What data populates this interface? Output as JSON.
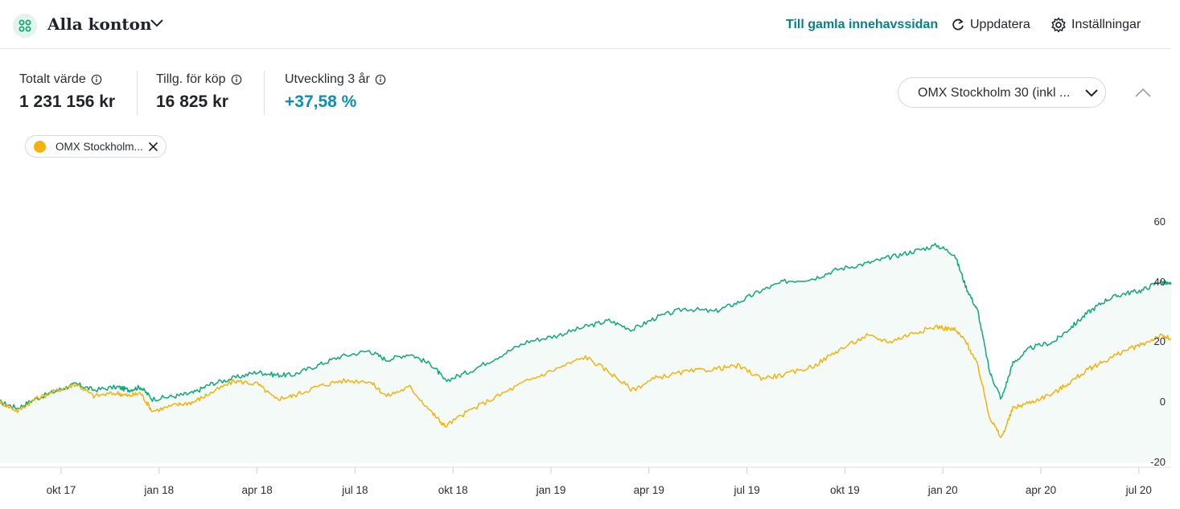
{
  "header": {
    "account_title": "Alla konton",
    "old_holdings_link": "Till gamla innehavssidan",
    "refresh_label": "Uppdatera",
    "settings_label": "Inställningar"
  },
  "stats": [
    {
      "label": "Totalt värde",
      "value": "1 231 156 kr"
    },
    {
      "label": "Tillg. för köp",
      "value": "16 825 kr"
    },
    {
      "label": "Utveckling 3 år",
      "value": "+37,58 %"
    }
  ],
  "index_select": {
    "value": "OMX Stockholm 30 (inkl ..."
  },
  "legend_chip": {
    "label": "OMX Stockholm...",
    "color": "#f2b30d"
  },
  "colors": {
    "portfolio": "#12a77a",
    "index": "#f2b30d",
    "fill": "#f3faf7",
    "positive": "#0b8fb3",
    "link": "#0b7f86"
  },
  "chart_data": {
    "type": "line",
    "x_tick_labels": [
      "okt 17",
      "jan 18",
      "apr 18",
      "jul 18",
      "okt 18",
      "jan 19",
      "apr 19",
      "jul 19",
      "okt 19",
      "jan 20",
      "apr 20",
      "jul 20"
    ],
    "y_tick_labels": [
      "60",
      "40",
      "20",
      "0",
      "-20"
    ],
    "ylim": [
      -20,
      60
    ],
    "series": [
      {
        "color": "#12a77a",
        "points": [
          [
            0,
            0
          ],
          [
            0.3,
            -2
          ],
          [
            0.6,
            1
          ],
          [
            1,
            4
          ],
          [
            1.3,
            6
          ],
          [
            1.6,
            4
          ],
          [
            2,
            5
          ],
          [
            2.2,
            4
          ],
          [
            2.4,
            5
          ],
          [
            2.6,
            1
          ],
          [
            3,
            2
          ],
          [
            3.3,
            3
          ],
          [
            3.6,
            6
          ],
          [
            4,
            8
          ],
          [
            4.4,
            10
          ],
          [
            4.7,
            9
          ],
          [
            5,
            9
          ],
          [
            5.4,
            12
          ],
          [
            5.8,
            15
          ],
          [
            6.3,
            17
          ],
          [
            6.6,
            14
          ],
          [
            7,
            16
          ],
          [
            7.4,
            12
          ],
          [
            7.6,
            7
          ],
          [
            8,
            10
          ],
          [
            8.5,
            15
          ],
          [
            9,
            20
          ],
          [
            9.5,
            22
          ],
          [
            10,
            25
          ],
          [
            10.4,
            27
          ],
          [
            10.8,
            24
          ],
          [
            11.2,
            28
          ],
          [
            11.7,
            31
          ],
          [
            12.2,
            30
          ],
          [
            12.6,
            33
          ],
          [
            13,
            37
          ],
          [
            13.4,
            40
          ],
          [
            13.9,
            41
          ],
          [
            14.3,
            44
          ],
          [
            14.8,
            46
          ],
          [
            15.2,
            48
          ],
          [
            15.6,
            50
          ],
          [
            16,
            52
          ],
          [
            16.3,
            49
          ],
          [
            16.5,
            38
          ],
          [
            16.7,
            30
          ],
          [
            16.9,
            10
          ],
          [
            17.1,
            1
          ],
          [
            17.3,
            13
          ],
          [
            17.6,
            18
          ],
          [
            18,
            20
          ],
          [
            18.3,
            25
          ],
          [
            18.6,
            30
          ],
          [
            18.9,
            34
          ],
          [
            19.2,
            36
          ],
          [
            19.5,
            37
          ],
          [
            19.8,
            40
          ],
          [
            20,
            39
          ]
        ]
      },
      {
        "color": "#f2b30d",
        "points": [
          [
            0,
            0
          ],
          [
            0.3,
            -3
          ],
          [
            0.6,
            1
          ],
          [
            1,
            4
          ],
          [
            1.3,
            6
          ],
          [
            1.6,
            2
          ],
          [
            2,
            3
          ],
          [
            2.2,
            2
          ],
          [
            2.4,
            3
          ],
          [
            2.6,
            -3
          ],
          [
            3,
            -1
          ],
          [
            3.3,
            0
          ],
          [
            3.6,
            3
          ],
          [
            4,
            7
          ],
          [
            4.4,
            6
          ],
          [
            4.7,
            1
          ],
          [
            5,
            2
          ],
          [
            5.4,
            5
          ],
          [
            5.8,
            7
          ],
          [
            6.3,
            7
          ],
          [
            6.6,
            2
          ],
          [
            7,
            5
          ],
          [
            7.4,
            -4
          ],
          [
            7.6,
            -8
          ],
          [
            8,
            -3
          ],
          [
            8.5,
            2
          ],
          [
            9,
            7
          ],
          [
            9.5,
            11
          ],
          [
            10,
            15
          ],
          [
            10.4,
            10
          ],
          [
            10.8,
            4
          ],
          [
            11.2,
            8
          ],
          [
            11.7,
            10
          ],
          [
            12.2,
            11
          ],
          [
            12.6,
            12
          ],
          [
            13,
            8
          ],
          [
            13.4,
            9
          ],
          [
            13.9,
            12
          ],
          [
            14.3,
            17
          ],
          [
            14.8,
            22
          ],
          [
            15.2,
            20
          ],
          [
            15.6,
            23
          ],
          [
            16,
            25
          ],
          [
            16.3,
            24
          ],
          [
            16.5,
            20
          ],
          [
            16.7,
            12
          ],
          [
            16.9,
            -5
          ],
          [
            17.1,
            -12
          ],
          [
            17.3,
            -2
          ],
          [
            17.6,
            0
          ],
          [
            18,
            3
          ],
          [
            18.3,
            7
          ],
          [
            18.6,
            11
          ],
          [
            18.9,
            14
          ],
          [
            19.2,
            17
          ],
          [
            19.5,
            19
          ],
          [
            19.8,
            22
          ],
          [
            20,
            21
          ]
        ]
      }
    ]
  }
}
